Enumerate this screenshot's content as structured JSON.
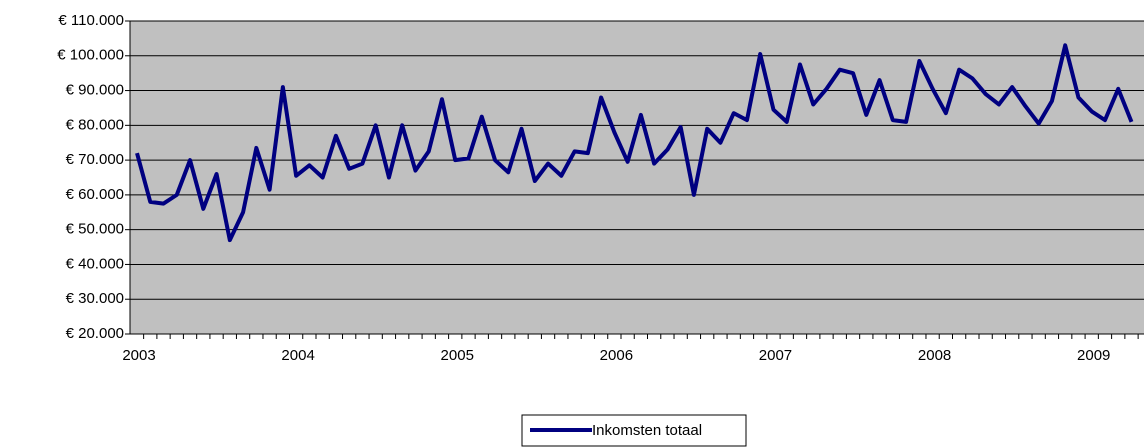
{
  "chart_data": {
    "type": "line",
    "categories": [
      "2003",
      null,
      null,
      null,
      null,
      null,
      null,
      null,
      null,
      null,
      null,
      null,
      "2004",
      null,
      null,
      null,
      null,
      null,
      null,
      null,
      null,
      null,
      null,
      null,
      "2005",
      null,
      null,
      null,
      null,
      null,
      null,
      null,
      null,
      null,
      null,
      null,
      "2006",
      null,
      null,
      null,
      null,
      null,
      null,
      null,
      null,
      null,
      null,
      null,
      "2007",
      null,
      null,
      null,
      null,
      null,
      null,
      null,
      null,
      null,
      null,
      null,
      "2008",
      null,
      null,
      null,
      null,
      null,
      null,
      null,
      null,
      null,
      null,
      null,
      "2009",
      null,
      null,
      null
    ],
    "series": [
      {
        "name": "Inkomsten totaal",
        "color": "#000080",
        "values": [
          72000,
          58000,
          57500,
          60000,
          70000,
          56000,
          66000,
          47000,
          55000,
          73500,
          61500,
          91000,
          65500,
          68500,
          65000,
          77000,
          67500,
          69000,
          80000,
          65000,
          80000,
          67000,
          72500,
          87500,
          70000,
          70500,
          82500,
          70000,
          66500,
          79000,
          64000,
          69000,
          65500,
          72500,
          72000,
          88000,
          78000,
          69500,
          83000,
          69000,
          73000,
          79500,
          60000,
          79000,
          75000,
          83500,
          81500,
          100500,
          84500,
          81000,
          97500,
          86000,
          90500,
          96000,
          95000,
          83000,
          93000,
          81500,
          81000,
          98500,
          90500,
          83500,
          96000,
          93500,
          89000,
          86000,
          91000,
          85500,
          80500,
          87000,
          103000,
          88000,
          84000,
          81500,
          90500,
          81000
        ]
      }
    ],
    "ylim": [
      20000,
      110000
    ],
    "yticks": [
      {
        "value": 20000,
        "label": "€ 20.000"
      },
      {
        "value": 30000,
        "label": "€ 30.000"
      },
      {
        "value": 40000,
        "label": "€ 40.000"
      },
      {
        "value": 50000,
        "label": "€ 50.000"
      },
      {
        "value": 60000,
        "label": "€ 60.000"
      },
      {
        "value": 70000,
        "label": "€ 70.000"
      },
      {
        "value": 80000,
        "label": "€ 80.000"
      },
      {
        "value": 90000,
        "label": "€ 90.000"
      },
      {
        "value": 100000,
        "label": "€ 100.000"
      },
      {
        "value": 110000,
        "label": "€ 110.000"
      }
    ],
    "grid": true,
    "legend": "bottom"
  }
}
